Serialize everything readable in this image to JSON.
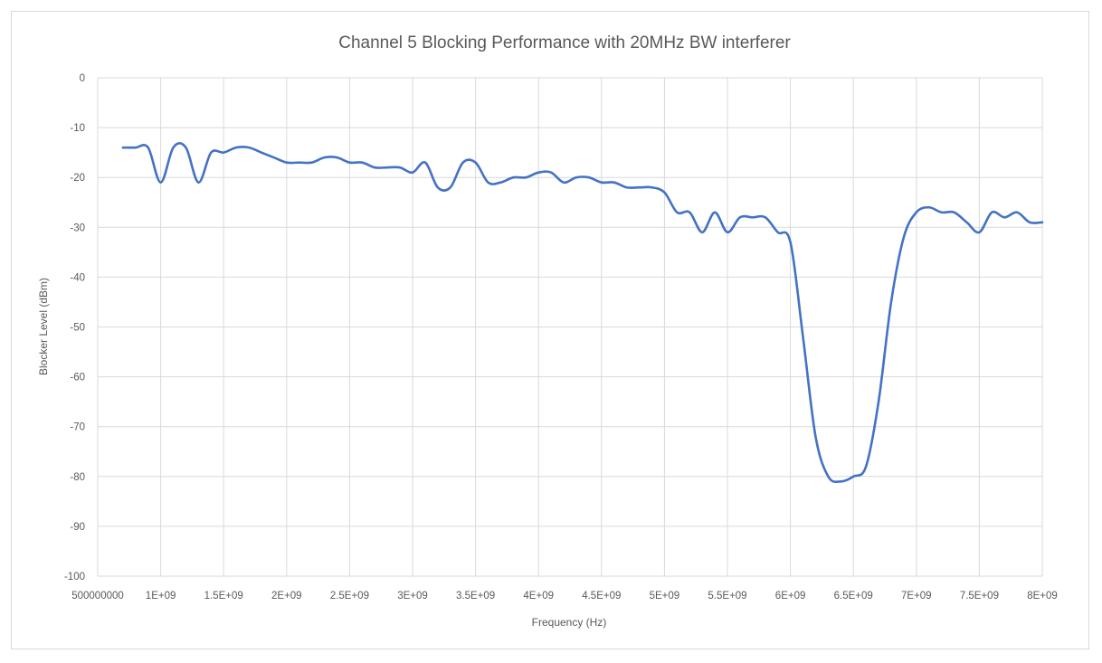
{
  "chart_data": {
    "type": "line",
    "title": "Channel 5 Blocking Performance with 20MHz BW interferer",
    "xlabel": "Frequency (Hz)",
    "ylabel": "Blocker Level (dBm)",
    "xlim": [
      500000000,
      8000000000
    ],
    "ylim": [
      -100,
      0
    ],
    "grid": true,
    "x_tick_values": [
      500000000,
      1000000000,
      1500000000,
      2000000000,
      2500000000,
      3000000000,
      3500000000,
      4000000000,
      4500000000,
      5000000000,
      5500000000,
      6000000000,
      6500000000,
      7000000000,
      7500000000,
      8000000000
    ],
    "x_tick_labels": [
      "500000000",
      "1E+09",
      "1.5E+09",
      "2E+09",
      "2.5E+09",
      "3E+09",
      "3.5E+09",
      "4E+09",
      "4.5E+09",
      "5E+09",
      "5.5E+09",
      "6E+09",
      "6.5E+09",
      "7E+09",
      "7.5E+09",
      "8E+09"
    ],
    "y_tick_values": [
      0,
      -10,
      -20,
      -30,
      -40,
      -50,
      -60,
      -70,
      -80,
      -90,
      -100
    ],
    "y_tick_labels": [
      "0",
      "-10",
      "-20",
      "-30",
      "-40",
      "-50",
      "-60",
      "-70",
      "-80",
      "-90",
      "-100"
    ],
    "series": [
      {
        "color": "#4472c4",
        "x": [
          700000000,
          800000000,
          900000000,
          1000000000,
          1100000000,
          1200000000,
          1300000000,
          1400000000,
          1500000000,
          1600000000,
          1700000000,
          1800000000,
          1900000000,
          2000000000,
          2100000000,
          2200000000,
          2300000000,
          2400000000,
          2500000000,
          2600000000,
          2700000000,
          2800000000,
          2900000000,
          3000000000,
          3100000000,
          3200000000,
          3300000000,
          3400000000,
          3500000000,
          3600000000,
          3700000000,
          3800000000,
          3900000000,
          4000000000,
          4100000000,
          4200000000,
          4300000000,
          4400000000,
          4500000000,
          4600000000,
          4700000000,
          4800000000,
          4900000000,
          5000000000,
          5100000000,
          5200000000,
          5300000000,
          5400000000,
          5500000000,
          5600000000,
          5700000000,
          5800000000,
          5900000000,
          6000000000,
          6100000000,
          6200000000,
          6300000000,
          6400000000,
          6500000000,
          6600000000,
          6700000000,
          6800000000,
          6900000000,
          7000000000,
          7100000000,
          7200000000,
          7300000000,
          7400000000,
          7500000000,
          7600000000,
          7700000000,
          7800000000,
          7900000000,
          8000000000
        ],
        "values": [
          -14,
          -14,
          -14,
          -21,
          -14,
          -14,
          -21,
          -15,
          -15,
          -14,
          -14,
          -15,
          -16,
          -17,
          -17,
          -17,
          -16,
          -16,
          -17,
          -17,
          -18,
          -18,
          -18,
          -19,
          -17,
          -22,
          -22,
          -17,
          -17,
          -21,
          -21,
          -20,
          -20,
          -19,
          -19,
          -21,
          -20,
          -20,
          -21,
          -21,
          -22,
          -22,
          -22,
          -23,
          -27,
          -27,
          -31,
          -27,
          -31,
          -28,
          -28,
          -28,
          -31,
          -33,
          -52,
          -72,
          -80,
          -81,
          -80,
          -78,
          -65,
          -45,
          -32,
          -27,
          -26,
          -27,
          -27,
          -29,
          -31,
          -27,
          -28,
          -27,
          -29,
          -29
        ]
      }
    ]
  }
}
